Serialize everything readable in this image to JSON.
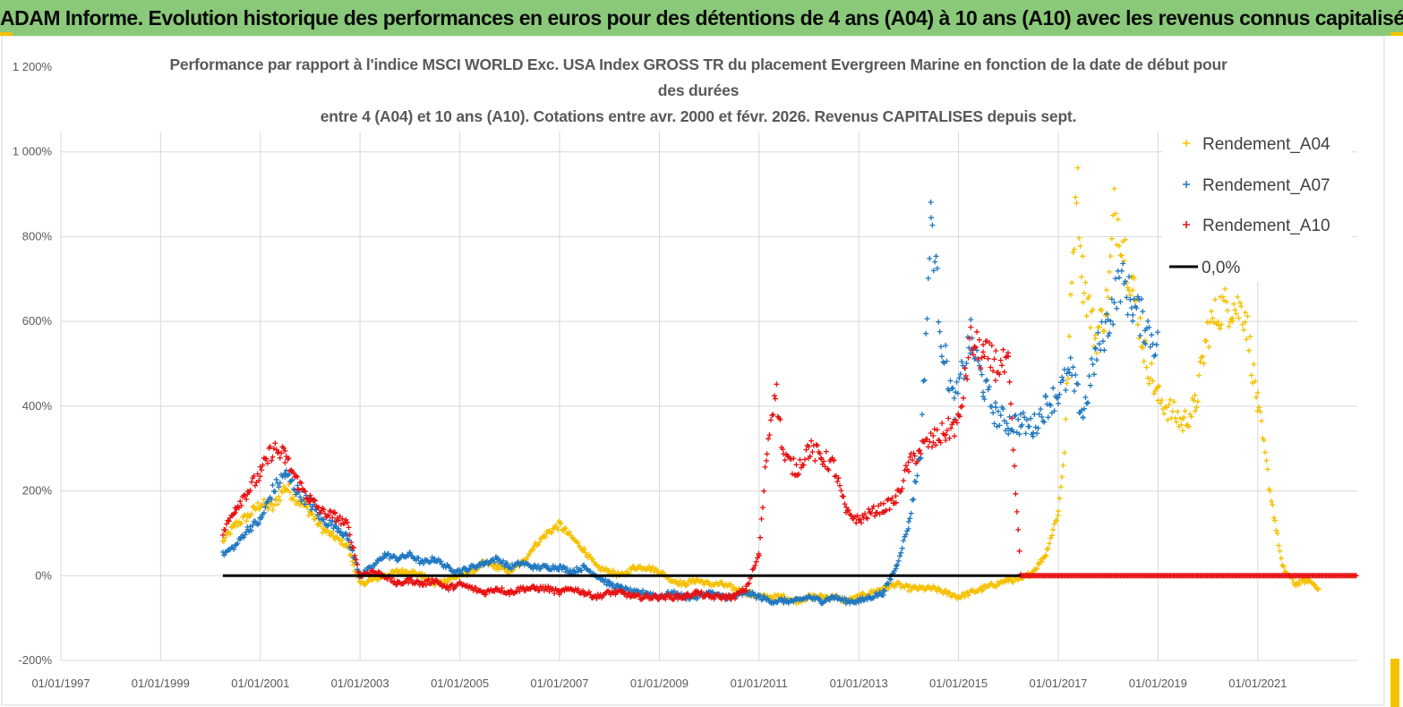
{
  "header": {
    "title": "ADAM Informe. Evolution historique des performances en euros pour des détentions de 4 ans (A04) à 10 ans (A10) avec les revenus connus capitalisés"
  },
  "colors": {
    "banner": "#8ac97a",
    "a04": "#f5c000",
    "a07": "#1f77c0",
    "a10": "#e81010",
    "zero": "#000000"
  },
  "chart_data": {
    "type": "scatter",
    "title_lines": [
      "Performance par rapport à l'indice MSCI WORLD Exc. USA Index GROSS TR  du placement Evergreen Marine  en fonction de la date de début pour",
      "des durées",
      "entre 4 (A04) et 10 ans (A10). Cotations entre avr. 2000 et févr. 2026. Revenus CAPITALISES depuis sept."
    ],
    "x_tick_labels": [
      "01/01/1997",
      "01/01/1999",
      "01/01/2001",
      "01/01/2003",
      "01/01/2005",
      "01/01/2007",
      "01/01/2009",
      "01/01/2011",
      "01/01/2013",
      "01/01/2015",
      "01/01/2017",
      "01/01/2019",
      "01/01/2021"
    ],
    "y_tick_labels": [
      "-200%",
      "0%",
      "200%",
      "400%",
      "600%",
      "800%",
      "1 000%",
      "1 200%"
    ],
    "xlim": [
      "1997-01-01",
      "2022-12-31"
    ],
    "ylim": [
      -200,
      1200
    ],
    "grid": true,
    "legend_position": "right",
    "series": [
      {
        "name": "Rendement_A04",
        "color": "#f5c000",
        "marker": "+",
        "points": [
          [
            "2000-04-01",
            80
          ],
          [
            "2000-07-01",
            120
          ],
          [
            "2000-10-01",
            140
          ],
          [
            "2001-01-01",
            170
          ],
          [
            "2001-04-01",
            160
          ],
          [
            "2001-07-01",
            210
          ],
          [
            "2001-10-01",
            180
          ],
          [
            "2002-01-01",
            150
          ],
          [
            "2002-04-01",
            110
          ],
          [
            "2002-07-01",
            90
          ],
          [
            "2002-10-01",
            70
          ],
          [
            "2003-01-01",
            -20
          ],
          [
            "2003-04-01",
            -10
          ],
          [
            "2003-07-01",
            0
          ],
          [
            "2003-10-01",
            10
          ],
          [
            "2004-01-01",
            10
          ],
          [
            "2004-04-01",
            0
          ],
          [
            "2004-07-01",
            -20
          ],
          [
            "2004-10-01",
            -10
          ],
          [
            "2005-01-01",
            0
          ],
          [
            "2005-04-01",
            10
          ],
          [
            "2005-07-01",
            30
          ],
          [
            "2005-10-01",
            20
          ],
          [
            "2006-01-01",
            10
          ],
          [
            "2006-04-01",
            30
          ],
          [
            "2006-07-01",
            70
          ],
          [
            "2006-10-01",
            100
          ],
          [
            "2007-01-01",
            120
          ],
          [
            "2007-04-01",
            90
          ],
          [
            "2007-07-01",
            60
          ],
          [
            "2007-10-01",
            20
          ],
          [
            "2008-01-01",
            10
          ],
          [
            "2008-04-01",
            0
          ],
          [
            "2008-07-01",
            20
          ],
          [
            "2008-10-01",
            20
          ],
          [
            "2009-01-01",
            10
          ],
          [
            "2009-04-01",
            -10
          ],
          [
            "2009-07-01",
            -20
          ],
          [
            "2009-10-01",
            -10
          ],
          [
            "2010-01-01",
            -20
          ],
          [
            "2010-04-01",
            -20
          ],
          [
            "2010-07-01",
            -30
          ],
          [
            "2010-10-01",
            -40
          ],
          [
            "2011-01-01",
            -50
          ],
          [
            "2011-04-01",
            -50
          ],
          [
            "2011-07-01",
            -50
          ],
          [
            "2011-10-01",
            -60
          ],
          [
            "2012-01-01",
            -50
          ],
          [
            "2012-04-01",
            -50
          ],
          [
            "2012-07-01",
            -50
          ],
          [
            "2012-10-01",
            -60
          ],
          [
            "2013-01-01",
            -50
          ],
          [
            "2013-04-01",
            -40
          ],
          [
            "2013-07-01",
            -30
          ],
          [
            "2013-10-01",
            -20
          ],
          [
            "2014-01-01",
            -30
          ],
          [
            "2014-04-01",
            -30
          ],
          [
            "2014-07-01",
            -30
          ],
          [
            "2014-10-01",
            -40
          ],
          [
            "2015-01-01",
            -50
          ],
          [
            "2015-04-01",
            -40
          ],
          [
            "2015-07-01",
            -30
          ],
          [
            "2015-10-01",
            -20
          ],
          [
            "2016-01-01",
            -10
          ],
          [
            "2016-04-01",
            -10
          ],
          [
            "2016-07-01",
            10
          ],
          [
            "2016-10-01",
            50
          ],
          [
            "2017-01-01",
            150
          ],
          [
            "2017-02-15",
            300
          ],
          [
            "2017-04-01",
            620
          ],
          [
            "2017-05-15",
            950
          ],
          [
            "2017-07-01",
            700
          ],
          [
            "2017-10-01",
            560
          ],
          [
            "2018-01-01",
            650
          ],
          [
            "2018-02-15",
            860
          ],
          [
            "2018-04-01",
            820
          ],
          [
            "2018-07-01",
            680
          ],
          [
            "2018-10-01",
            520
          ],
          [
            "2019-01-01",
            420
          ],
          [
            "2019-04-01",
            390
          ],
          [
            "2019-07-01",
            360
          ],
          [
            "2019-10-01",
            400
          ],
          [
            "2020-01-01",
            580
          ],
          [
            "2020-04-01",
            630
          ],
          [
            "2020-07-01",
            640
          ],
          [
            "2020-10-01",
            620
          ],
          [
            "2021-01-01",
            400
          ],
          [
            "2021-04-01",
            200
          ],
          [
            "2021-07-01",
            20
          ],
          [
            "2021-10-01",
            -20
          ],
          [
            "2022-01-01",
            -10
          ],
          [
            "2022-04-01",
            -30
          ]
        ]
      },
      {
        "name": "Rendement_A07",
        "color": "#1f77c0",
        "marker": "+",
        "points": [
          [
            "2000-04-01",
            50
          ],
          [
            "2000-07-01",
            70
          ],
          [
            "2000-10-01",
            110
          ],
          [
            "2001-01-01",
            130
          ],
          [
            "2001-04-01",
            200
          ],
          [
            "2001-07-01",
            240
          ],
          [
            "2001-10-01",
            200
          ],
          [
            "2002-01-01",
            170
          ],
          [
            "2002-04-01",
            130
          ],
          [
            "2002-07-01",
            120
          ],
          [
            "2002-10-01",
            90
          ],
          [
            "2003-01-01",
            0
          ],
          [
            "2003-04-01",
            20
          ],
          [
            "2003-07-01",
            50
          ],
          [
            "2003-10-01",
            40
          ],
          [
            "2004-01-01",
            50
          ],
          [
            "2004-04-01",
            30
          ],
          [
            "2004-07-01",
            40
          ],
          [
            "2004-10-01",
            20
          ],
          [
            "2005-01-01",
            10
          ],
          [
            "2005-04-01",
            20
          ],
          [
            "2005-07-01",
            30
          ],
          [
            "2005-10-01",
            40
          ],
          [
            "2006-01-01",
            20
          ],
          [
            "2006-04-01",
            30
          ],
          [
            "2006-07-01",
            20
          ],
          [
            "2006-10-01",
            20
          ],
          [
            "2007-01-01",
            20
          ],
          [
            "2007-04-01",
            10
          ],
          [
            "2007-07-01",
            20
          ],
          [
            "2007-10-01",
            0
          ],
          [
            "2008-01-01",
            -20
          ],
          [
            "2008-04-01",
            -30
          ],
          [
            "2008-07-01",
            -40
          ],
          [
            "2008-10-01",
            -40
          ],
          [
            "2009-01-01",
            -50
          ],
          [
            "2009-04-01",
            -40
          ],
          [
            "2009-07-01",
            -50
          ],
          [
            "2009-10-01",
            -50
          ],
          [
            "2010-01-01",
            -40
          ],
          [
            "2010-04-01",
            -50
          ],
          [
            "2010-07-01",
            -50
          ],
          [
            "2010-10-01",
            -40
          ],
          [
            "2011-01-01",
            -50
          ],
          [
            "2011-04-01",
            -60
          ],
          [
            "2011-07-01",
            -60
          ],
          [
            "2011-10-01",
            -60
          ],
          [
            "2012-01-01",
            -50
          ],
          [
            "2012-04-01",
            -60
          ],
          [
            "2012-07-01",
            -50
          ],
          [
            "2012-10-01",
            -60
          ],
          [
            "2013-01-01",
            -60
          ],
          [
            "2013-04-01",
            -50
          ],
          [
            "2013-07-01",
            -40
          ],
          [
            "2013-10-01",
            20
          ],
          [
            "2014-01-01",
            120
          ],
          [
            "2014-04-01",
            300
          ],
          [
            "2014-06-15",
            850
          ],
          [
            "2014-09-01",
            550
          ],
          [
            "2014-12-01",
            400
          ],
          [
            "2015-04-01",
            560
          ],
          [
            "2015-07-01",
            450
          ],
          [
            "2015-10-01",
            380
          ],
          [
            "2016-01-01",
            360
          ],
          [
            "2016-04-01",
            360
          ],
          [
            "2016-07-01",
            350
          ],
          [
            "2016-10-01",
            400
          ],
          [
            "2017-01-01",
            430
          ],
          [
            "2017-04-01",
            480
          ],
          [
            "2017-07-01",
            380
          ],
          [
            "2017-10-01",
            520
          ],
          [
            "2018-01-01",
            600
          ],
          [
            "2018-04-01",
            700
          ],
          [
            "2018-07-01",
            640
          ],
          [
            "2018-10-01",
            590
          ],
          [
            "2019-01-01",
            540
          ]
        ]
      },
      {
        "name": "Rendement_A10",
        "color": "#e81010",
        "marker": "+",
        "points": [
          [
            "2000-04-01",
            100
          ],
          [
            "2000-07-01",
            160
          ],
          [
            "2000-10-01",
            200
          ],
          [
            "2001-01-01",
            240
          ],
          [
            "2001-04-01",
            300
          ],
          [
            "2001-07-01",
            280
          ],
          [
            "2001-10-01",
            220
          ],
          [
            "2002-01-01",
            180
          ],
          [
            "2002-04-01",
            150
          ],
          [
            "2002-07-01",
            140
          ],
          [
            "2002-10-01",
            120
          ],
          [
            "2003-01-01",
            0
          ],
          [
            "2003-04-01",
            10
          ],
          [
            "2003-07-01",
            0
          ],
          [
            "2003-10-01",
            -20
          ],
          [
            "2004-01-01",
            -10
          ],
          [
            "2004-04-01",
            -20
          ],
          [
            "2004-07-01",
            -10
          ],
          [
            "2004-10-01",
            -30
          ],
          [
            "2005-01-01",
            -20
          ],
          [
            "2005-04-01",
            -30
          ],
          [
            "2005-07-01",
            -40
          ],
          [
            "2005-10-01",
            -30
          ],
          [
            "2006-01-01",
            -40
          ],
          [
            "2006-04-01",
            -30
          ],
          [
            "2006-07-01",
            -30
          ],
          [
            "2006-10-01",
            -30
          ],
          [
            "2007-01-01",
            -40
          ],
          [
            "2007-04-01",
            -30
          ],
          [
            "2007-07-01",
            -40
          ],
          [
            "2007-10-01",
            -50
          ],
          [
            "2008-01-01",
            -40
          ],
          [
            "2008-04-01",
            -40
          ],
          [
            "2008-07-01",
            -50
          ],
          [
            "2008-10-01",
            -50
          ],
          [
            "2009-01-01",
            -50
          ],
          [
            "2009-04-01",
            -50
          ],
          [
            "2009-07-01",
            -50
          ],
          [
            "2009-10-01",
            -40
          ],
          [
            "2010-01-01",
            -50
          ],
          [
            "2010-04-01",
            -50
          ],
          [
            "2010-07-01",
            -50
          ],
          [
            "2010-10-01",
            -30
          ],
          [
            "2011-01-01",
            50
          ],
          [
            "2011-03-01",
            300
          ],
          [
            "2011-05-01",
            450
          ],
          [
            "2011-07-01",
            280
          ],
          [
            "2011-10-01",
            250
          ],
          [
            "2012-01-01",
            300
          ],
          [
            "2012-04-01",
            280
          ],
          [
            "2012-07-01",
            260
          ],
          [
            "2012-10-01",
            150
          ],
          [
            "2013-01-01",
            130
          ],
          [
            "2013-04-01",
            150
          ],
          [
            "2013-07-01",
            160
          ],
          [
            "2013-10-01",
            180
          ],
          [
            "2014-01-01",
            260
          ],
          [
            "2014-04-01",
            300
          ],
          [
            "2014-07-01",
            320
          ],
          [
            "2014-10-01",
            340
          ],
          [
            "2015-01-01",
            360
          ],
          [
            "2015-04-01",
            550
          ],
          [
            "2015-07-01",
            520
          ],
          [
            "2015-10-01",
            500
          ],
          [
            "2016-01-01",
            490
          ],
          [
            "2016-04-01",
            0
          ],
          [
            "2022-12-31",
            0
          ]
        ]
      },
      {
        "name": "0,0%",
        "color": "#000000",
        "marker": "line",
        "points": [
          [
            "2000-04-01",
            0
          ],
          [
            "2016-04-01",
            0
          ]
        ]
      }
    ]
  }
}
